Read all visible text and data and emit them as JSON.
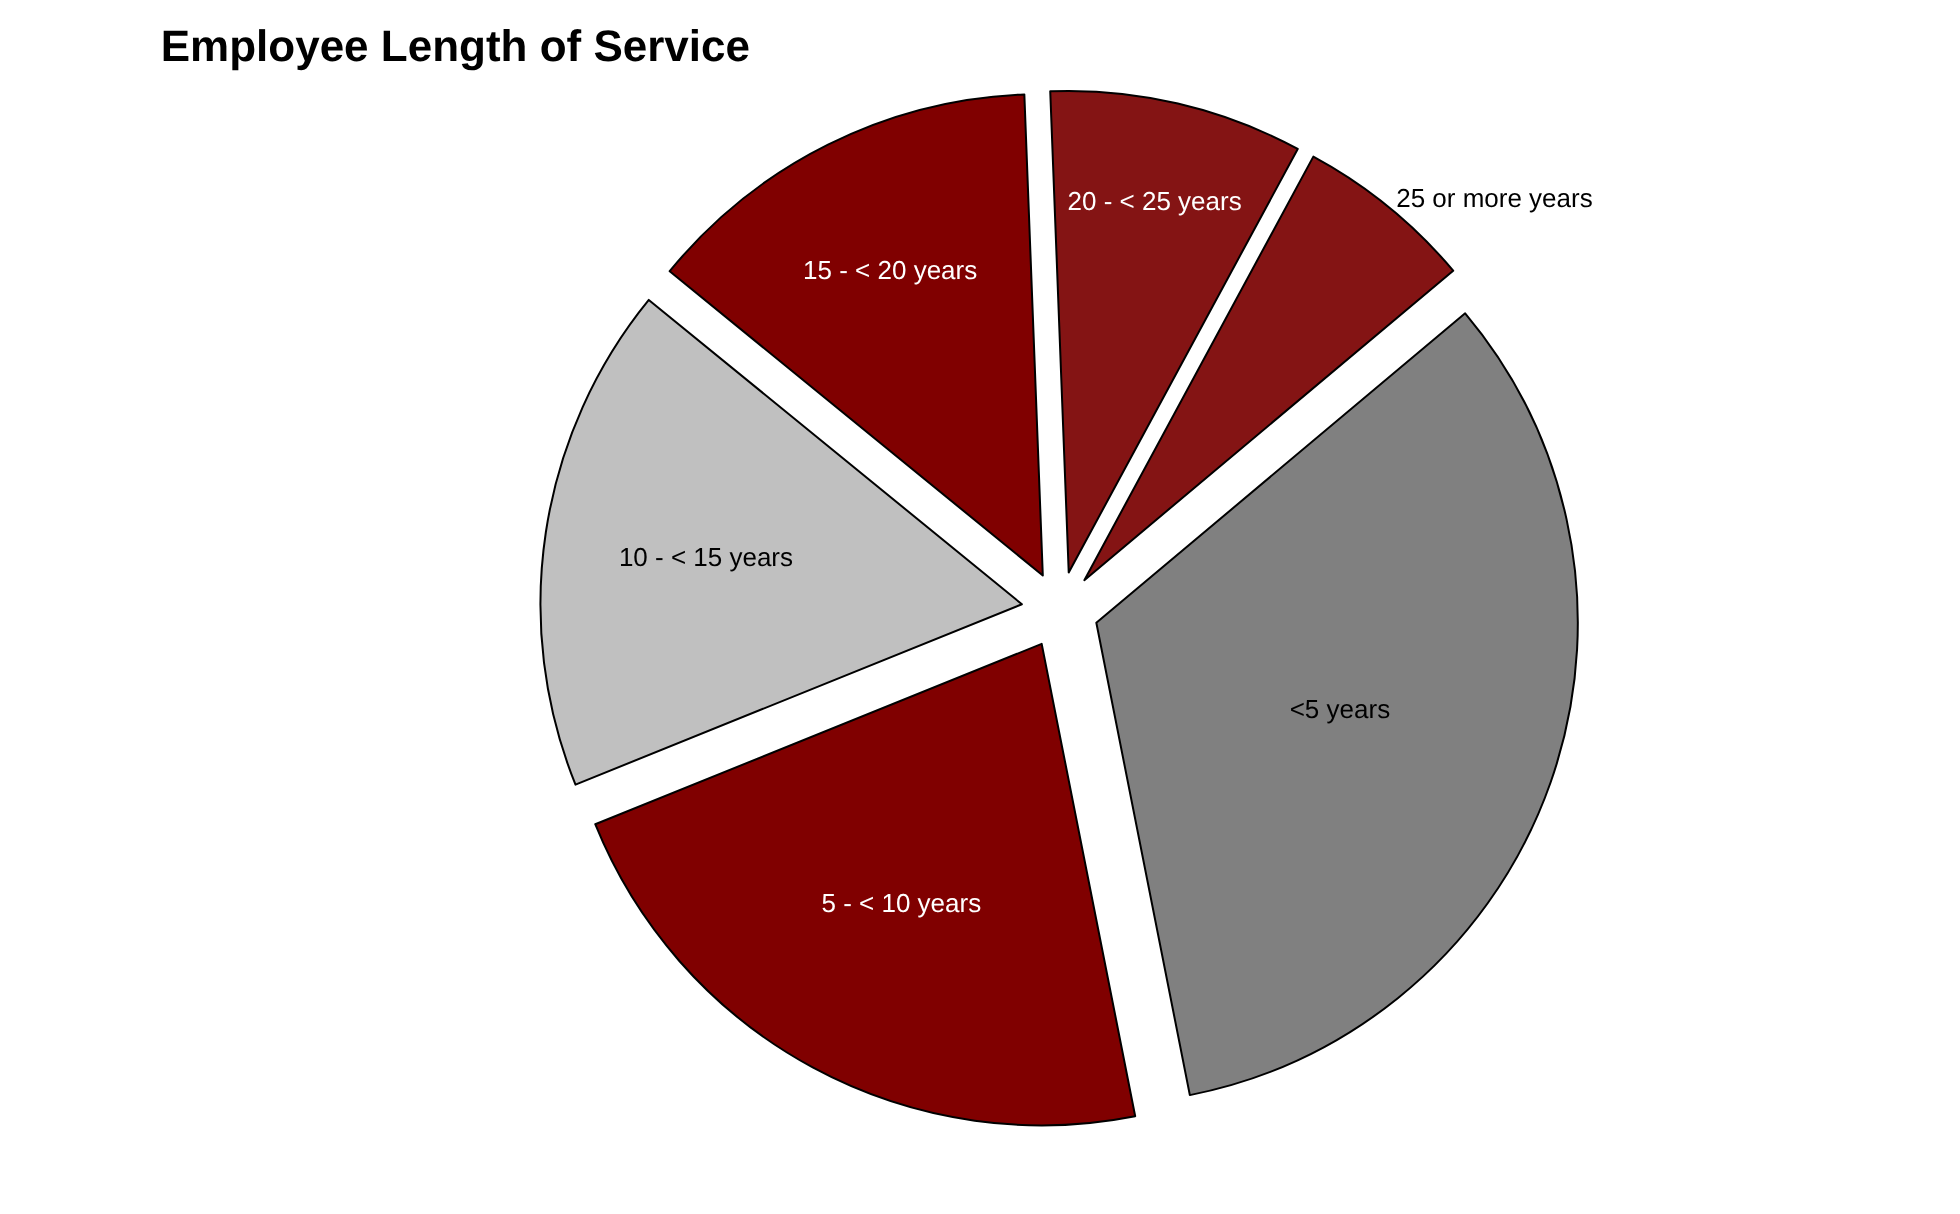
{
  "chart_data": {
    "type": "pie",
    "title": "Employee Length of Service",
    "categories": [
      "<5 years",
      "5 - < 10 years",
      "10 - < 15 years",
      "15 - < 20 years",
      "20 - < 25 years",
      "25 or more years"
    ],
    "values": [
      33,
      22,
      17,
      13.5,
      8.5,
      6
    ],
    "colors": [
      "#808080",
      "#800000",
      "#c0c0c0",
      "#800000",
      "#841414",
      "#841414"
    ],
    "legend": false
  }
}
